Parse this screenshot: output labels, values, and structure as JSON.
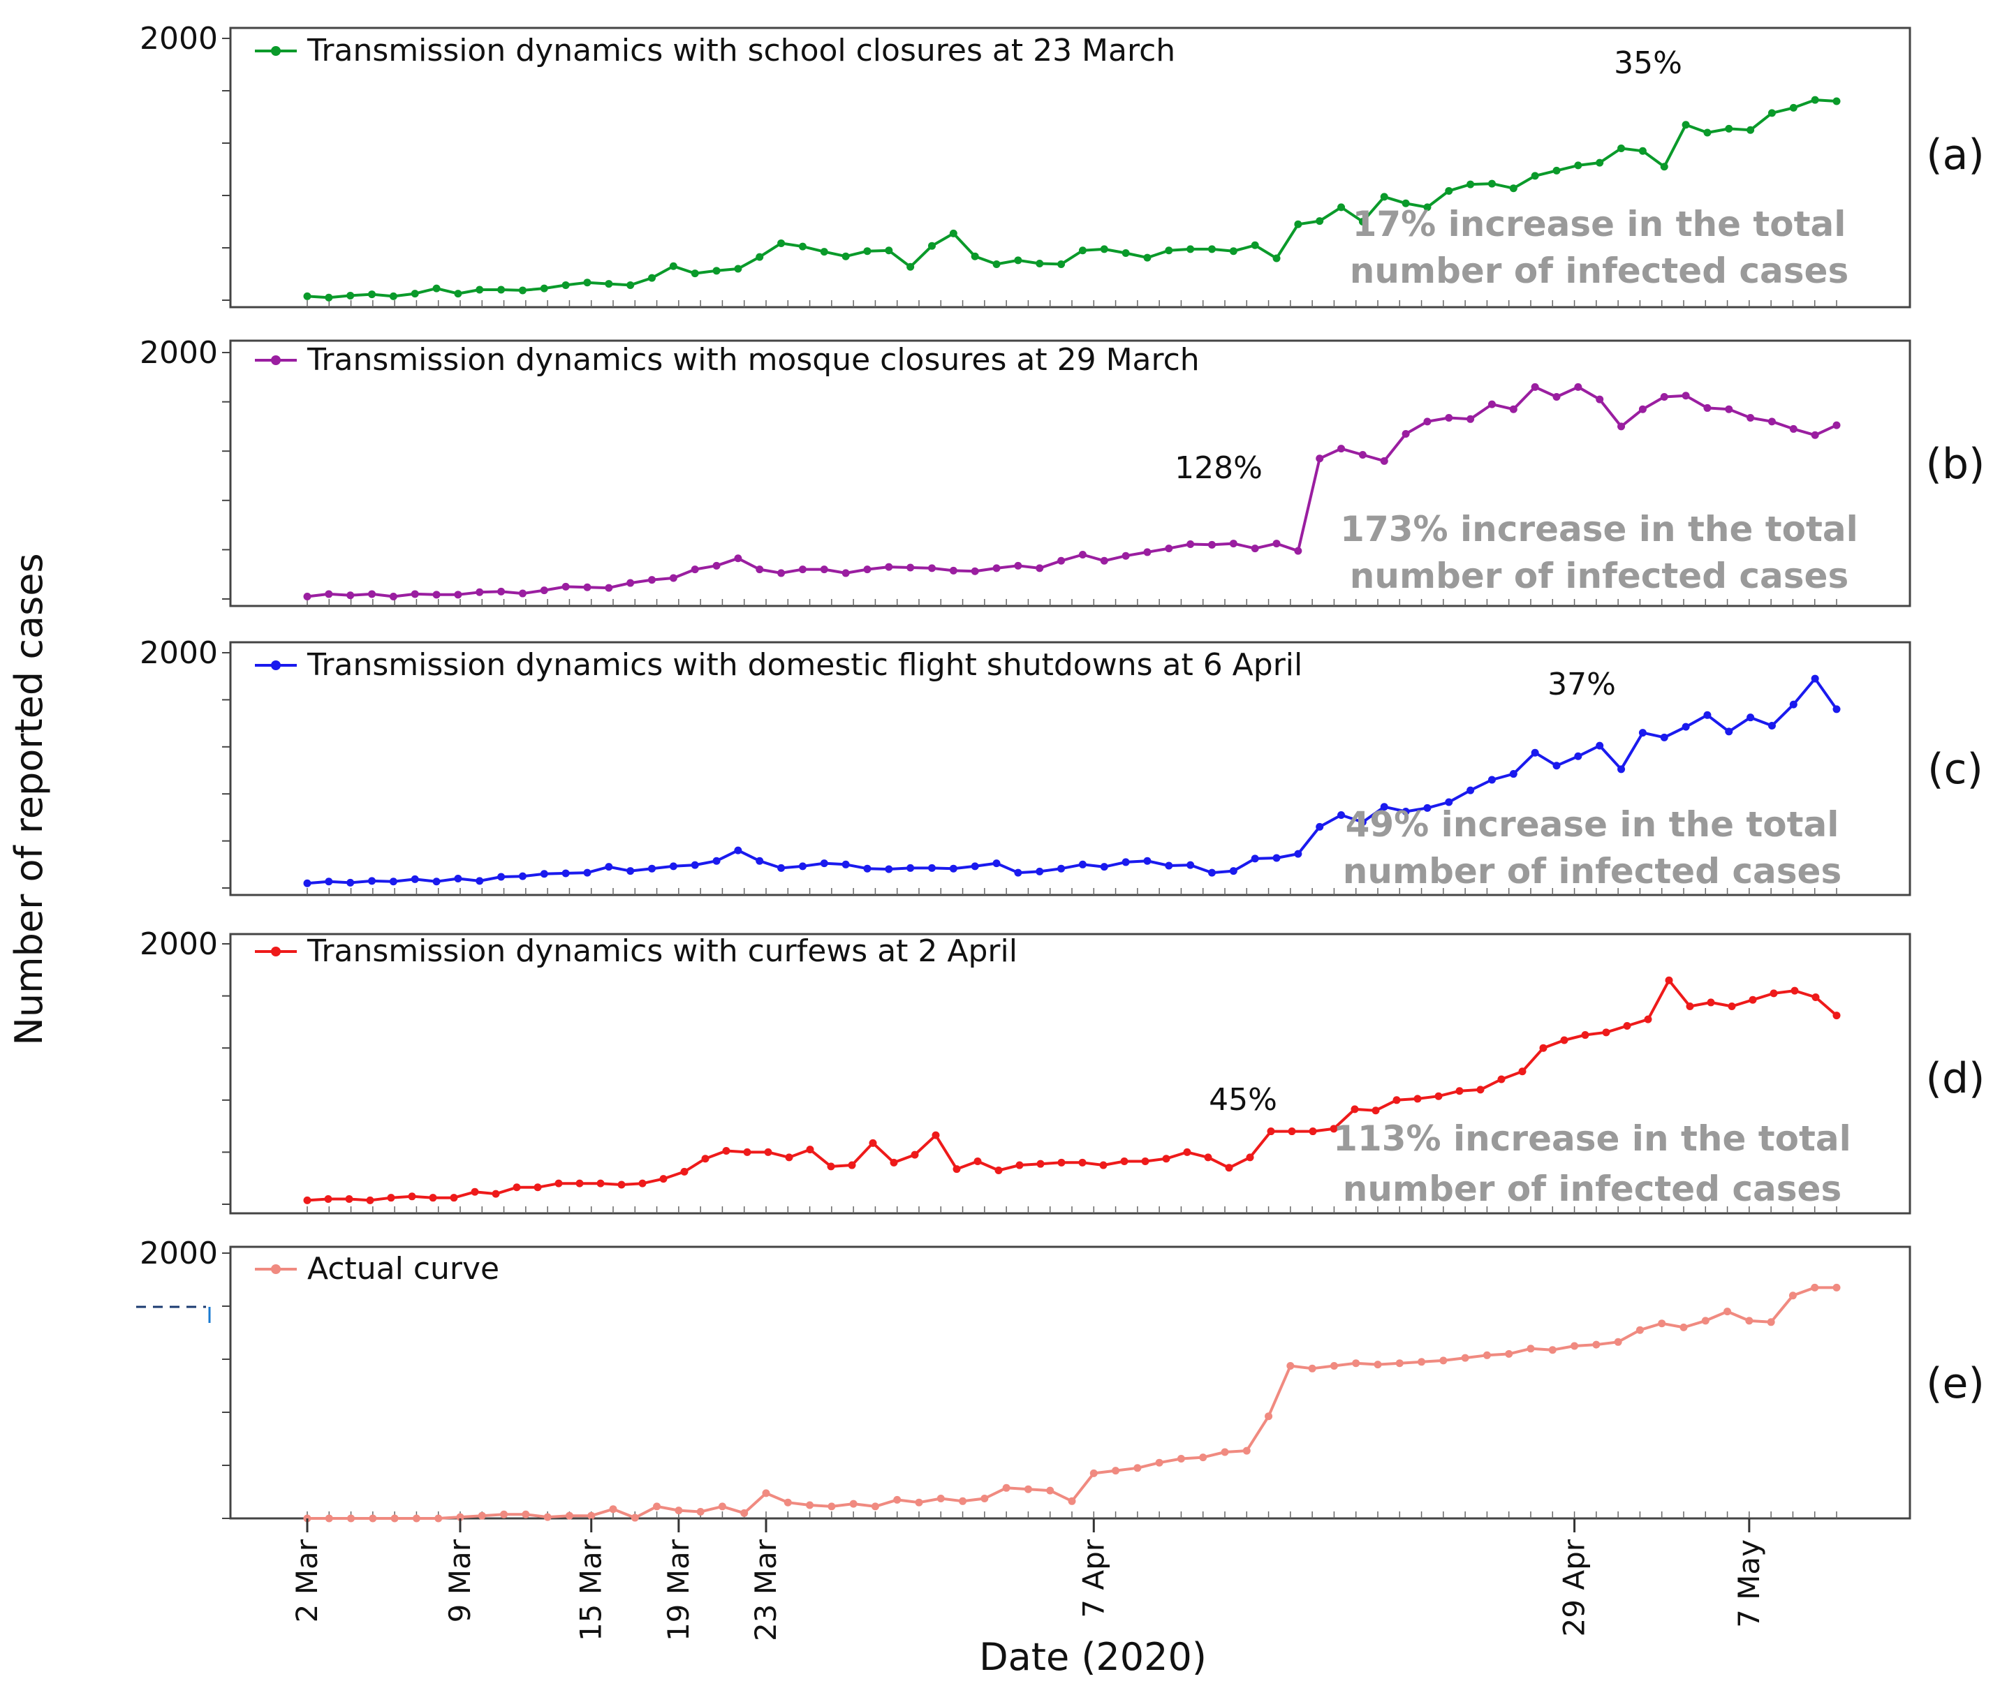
{
  "chart_data": {
    "type": "line",
    "ylabel": "Number of reported cases",
    "xlabel": "Date (2020)",
    "y_tick_label": "2000",
    "ylim": [
      0,
      2000
    ],
    "x_ticks": [
      "2 Mar",
      "9 Mar",
      "15 Mar",
      "19 Mar",
      "23 Mar",
      "7 Apr",
      "29 Apr",
      "7 May"
    ],
    "panels": [
      {
        "id": "(a)",
        "legend": "Transmission dynamics with school closures at 23 March",
        "color": "#0a9a2a",
        "peak_annotation": "35%",
        "note_line1": "17% increase in the total",
        "note_line2": "number of infected cases",
        "values": [
          30,
          20,
          35,
          45,
          30,
          50,
          90,
          50,
          80,
          80,
          75,
          90,
          115,
          135,
          125,
          115,
          170,
          260,
          205,
          225,
          240,
          330,
          435,
          410,
          370,
          335,
          375,
          380,
          255,
          415,
          510,
          335,
          275,
          305,
          280,
          275,
          380,
          390,
          360,
          325,
          380,
          390,
          390,
          375,
          420,
          320,
          580,
          605,
          710,
          600,
          790,
          740,
          710,
          835,
          885,
          890,
          855,
          950,
          990,
          1030,
          1050,
          1160,
          1140,
          1020,
          1340,
          1280,
          1310,
          1300,
          1430,
          1470,
          1530,
          1520
        ]
      },
      {
        "id": "(b)",
        "legend": "Transmission dynamics with mosque closures at 29 March",
        "color": "#9a1ea0",
        "peak_annotation": "128%",
        "note_line1": "173% increase in the total",
        "note_line2": "number of infected cases",
        "values": [
          20,
          40,
          30,
          40,
          20,
          40,
          35,
          35,
          55,
          60,
          45,
          70,
          100,
          95,
          90,
          130,
          155,
          170,
          240,
          270,
          330,
          240,
          210,
          240,
          240,
          210,
          240,
          260,
          255,
          250,
          230,
          225,
          250,
          270,
          250,
          310,
          360,
          310,
          350,
          380,
          410,
          445,
          440,
          450,
          410,
          450,
          390,
          1140,
          1220,
          1170,
          1120,
          1340,
          1440,
          1470,
          1460,
          1580,
          1540,
          1720,
          1640,
          1720,
          1620,
          1400,
          1540,
          1640,
          1650,
          1550,
          1540,
          1470,
          1440,
          1380,
          1330,
          1410
        ]
      },
      {
        "id": "(c)",
        "legend": "Transmission dynamics with domestic flight shutdowns at 6 April",
        "color": "#1a1aee",
        "peak_annotation": "37%",
        "note_line1": "49% increase in the total",
        "note_line2": "number of infected cases",
        "values": [
          40,
          55,
          45,
          60,
          55,
          75,
          55,
          80,
          60,
          95,
          100,
          120,
          125,
          130,
          180,
          145,
          165,
          185,
          195,
          230,
          320,
          230,
          170,
          185,
          210,
          200,
          165,
          160,
          170,
          170,
          165,
          185,
          210,
          130,
          140,
          165,
          200,
          180,
          220,
          230,
          190,
          195,
          130,
          145,
          250,
          255,
          290,
          520,
          620,
          560,
          690,
          650,
          680,
          730,
          830,
          920,
          970,
          1150,
          1040,
          1120,
          1210,
          1010,
          1320,
          1280,
          1370,
          1470,
          1330,
          1450,
          1380,
          1560,
          1780,
          1520
        ]
      },
      {
        "id": "(d)",
        "legend": "Transmission dynamics with curfews at 2 April",
        "color": "#ee1a1a",
        "peak_annotation": "45%",
        "note_line1": "113% increase in the total",
        "note_line2": "number of infected cases",
        "values": [
          30,
          40,
          40,
          30,
          50,
          60,
          50,
          50,
          95,
          80,
          130,
          130,
          160,
          160,
          160,
          150,
          160,
          195,
          250,
          350,
          410,
          400,
          400,
          360,
          420,
          290,
          300,
          470,
          320,
          380,
          530,
          270,
          330,
          260,
          300,
          310,
          320,
          320,
          300,
          330,
          330,
          350,
          400,
          360,
          280,
          360,
          560,
          560,
          560,
          580,
          730,
          720,
          800,
          810,
          830,
          870,
          880,
          960,
          1020,
          1200,
          1260,
          1300,
          1320,
          1370,
          1420,
          1720,
          1520,
          1550,
          1520,
          1570,
          1620,
          1640,
          1590,
          1450
        ]
      },
      {
        "id": "(e)",
        "legend": "Actual curve",
        "color": "#f08a80",
        "values": [
          0,
          0,
          0,
          0,
          0,
          0,
          0,
          10,
          20,
          30,
          30,
          10,
          20,
          20,
          70,
          5,
          90,
          60,
          50,
          90,
          40,
          190,
          120,
          100,
          90,
          110,
          90,
          140,
          120,
          150,
          130,
          150,
          230,
          220,
          210,
          130,
          340,
          360,
          380,
          420,
          450,
          460,
          500,
          510,
          770,
          1150,
          1130,
          1150,
          1170,
          1160,
          1170,
          1180,
          1190,
          1210,
          1230,
          1240,
          1280,
          1270,
          1300,
          1310,
          1330,
          1420,
          1470,
          1440,
          1490,
          1560,
          1490,
          1480,
          1680,
          1740,
          1740
        ]
      }
    ]
  }
}
